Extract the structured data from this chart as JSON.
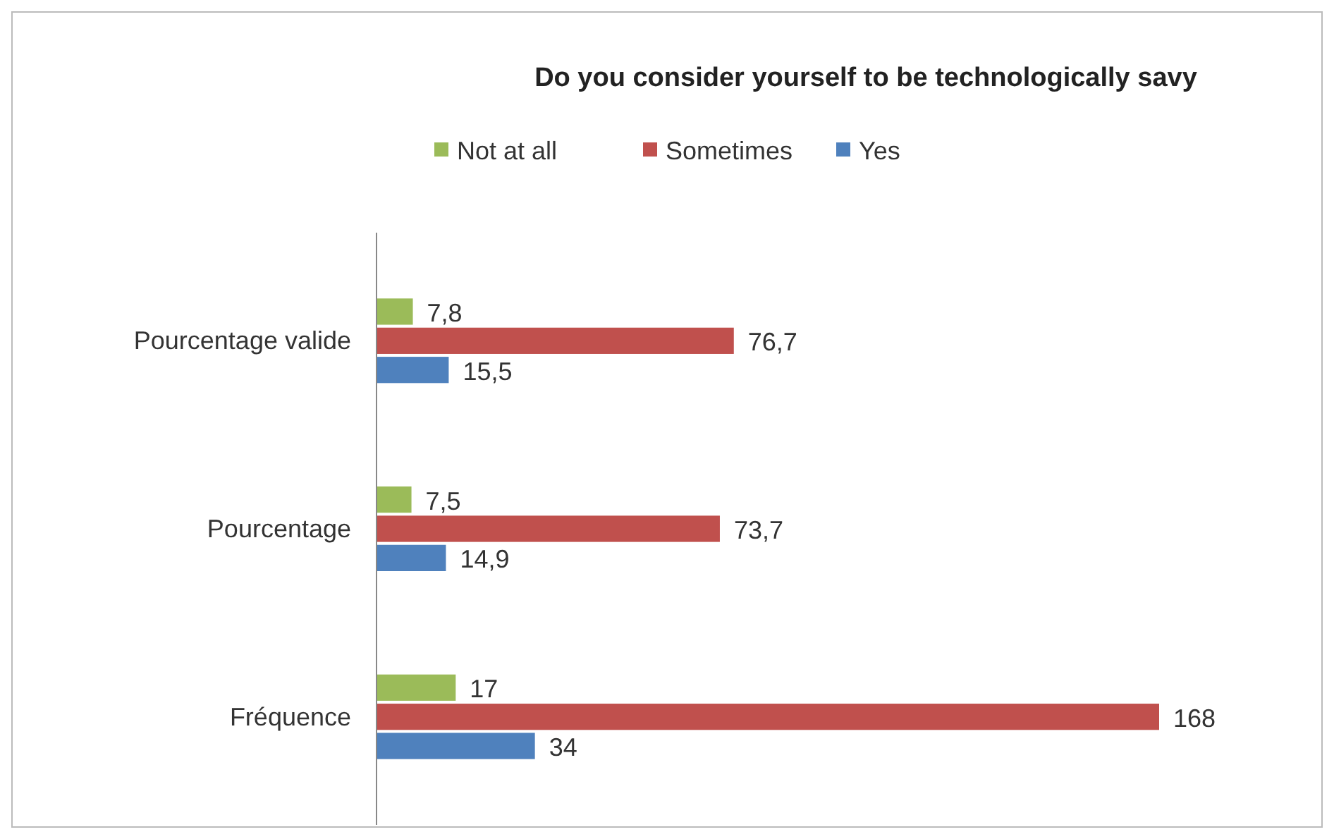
{
  "chart_data": {
    "type": "bar",
    "orientation": "horizontal",
    "title": "Do you consider yourself to be technologically savy",
    "categories": [
      "Pourcentage valide",
      "Pourcentage",
      "Fréquence"
    ],
    "legend": "top",
    "series": [
      {
        "name": "Not at all",
        "color": "#9bbb59",
        "values": [
          7.8,
          7.5,
          17
        ],
        "value_labels": [
          "7,8",
          "7,5",
          "17"
        ]
      },
      {
        "name": "Sometimes",
        "color": "#c0504d",
        "values": [
          76.7,
          73.7,
          168
        ],
        "value_labels": [
          "76,7",
          "73,7",
          "168"
        ]
      },
      {
        "name": "Yes",
        "color": "#4f81bd",
        "values": [
          15.5,
          14.9,
          34
        ],
        "value_labels": [
          "15,5",
          "14,9",
          "34"
        ]
      }
    ]
  }
}
